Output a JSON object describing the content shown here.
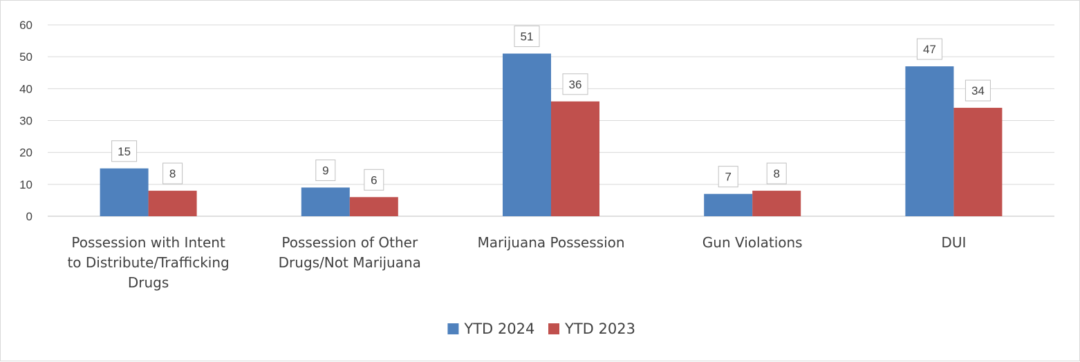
{
  "chart_data": {
    "type": "bar",
    "title": "",
    "xlabel": "",
    "ylabel": "",
    "categories": [
      [
        "Possession with Intent",
        "to Distribute/Trafficking",
        "Drugs"
      ],
      [
        "Possession of Other",
        "Drugs/Not Marijuana"
      ],
      [
        "Marijuana Possession"
      ],
      [
        "Gun Violations"
      ],
      [
        "DUI"
      ]
    ],
    "series": [
      {
        "name": "YTD 2024",
        "color": "#4f81bd",
        "values": [
          15,
          9,
          51,
          7,
          47
        ]
      },
      {
        "name": "YTD 2023",
        "color": "#c0504d",
        "values": [
          8,
          6,
          36,
          8,
          34
        ]
      }
    ],
    "ylim": [
      0,
      60
    ],
    "yticks": [
      0,
      10,
      20,
      30,
      40,
      50,
      60
    ],
    "grid": true,
    "legend": "bottom",
    "data_labels": true
  }
}
